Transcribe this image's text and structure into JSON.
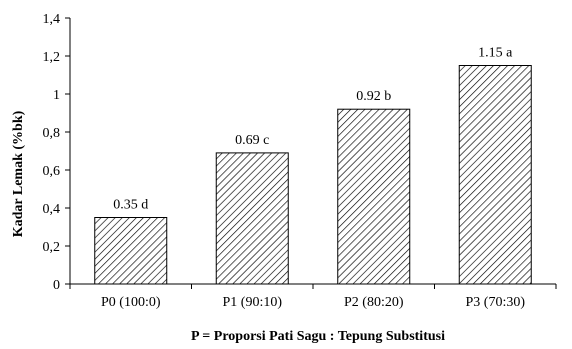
{
  "chart_data": {
    "type": "bar",
    "title": "",
    "xlabel": "P = Proporsi Pati Sagu : Tepung Substitusi",
    "ylabel": "Kadar Lemak (%bk)",
    "categories": [
      "P0 (100:0)",
      "P1 (90:10)",
      "P2 (80:20)",
      "P3 (70:30)"
    ],
    "values": [
      0.35,
      0.69,
      0.92,
      1.15
    ],
    "data_labels": [
      "0.35 d",
      "0.69 c",
      "0.92 b",
      "1.15 a"
    ],
    "ylim": [
      0,
      1.4
    ],
    "yticks": [
      0,
      0.2,
      0.4,
      0.6,
      0.8,
      1,
      1.2,
      1.4
    ],
    "ytick_labels": [
      "0",
      "0,2",
      "0,4",
      "0,6",
      "0,8",
      "1",
      "1,2",
      "1,4"
    ],
    "grid": false,
    "bar_fill": "diagonal-hatch",
    "colors": {
      "bar_stroke": "#000000",
      "hatch": "#000000",
      "axis": "#000000"
    }
  }
}
